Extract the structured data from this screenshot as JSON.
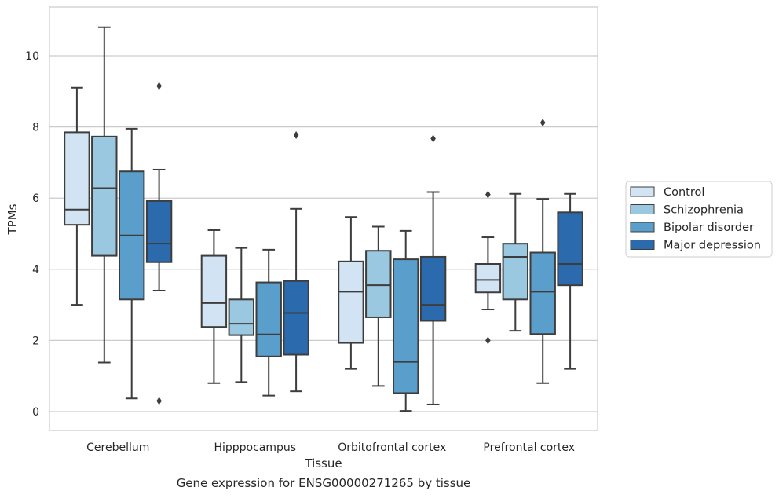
{
  "chart_data": {
    "type": "boxplot",
    "xlabel": "Tissue",
    "ylabel": "TPMs",
    "ylim": [
      -0.5,
      11.3
    ],
    "yticks": [
      0,
      2,
      4,
      6,
      8,
      10
    ],
    "grid": "horizontal",
    "legend_position": "right",
    "categories": [
      "Cerebellum",
      "Hipppocampus",
      "Orbitofrontal cortex",
      "Prefrontal cortex"
    ],
    "series": [
      {
        "name": "Control",
        "color": "#d2e3f3",
        "boxes": [
          {
            "whislo": 3.0,
            "q1": 5.25,
            "med": 5.68,
            "q3": 7.85,
            "whishi": 9.1,
            "fliers": []
          },
          {
            "whislo": 0.8,
            "q1": 2.38,
            "med": 3.05,
            "q3": 4.38,
            "whishi": 5.1,
            "fliers": []
          },
          {
            "whislo": 1.2,
            "q1": 1.93,
            "med": 3.37,
            "q3": 4.22,
            "whishi": 5.47,
            "fliers": []
          },
          {
            "whislo": 2.87,
            "q1": 3.35,
            "med": 3.7,
            "q3": 4.15,
            "whishi": 4.9,
            "fliers": [
              2.0,
              6.1
            ]
          }
        ]
      },
      {
        "name": "Schizophrenia",
        "color": "#9ac8e0",
        "boxes": [
          {
            "whislo": 1.38,
            "q1": 4.38,
            "med": 6.28,
            "q3": 7.73,
            "whishi": 10.8,
            "fliers": []
          },
          {
            "whislo": 0.83,
            "q1": 2.15,
            "med": 2.47,
            "q3": 3.15,
            "whishi": 4.6,
            "fliers": []
          },
          {
            "whislo": 0.72,
            "q1": 2.65,
            "med": 3.55,
            "q3": 4.52,
            "whishi": 5.2,
            "fliers": []
          },
          {
            "whislo": 2.27,
            "q1": 3.15,
            "med": 4.35,
            "q3": 4.72,
            "whishi": 6.12,
            "fliers": []
          }
        ]
      },
      {
        "name": "Bipolar disorder",
        "color": "#5a9ecc",
        "boxes": [
          {
            "whislo": 0.37,
            "q1": 3.15,
            "med": 4.95,
            "q3": 6.75,
            "whishi": 7.95,
            "fliers": []
          },
          {
            "whislo": 0.45,
            "q1": 1.55,
            "med": 2.17,
            "q3": 3.63,
            "whishi": 4.55,
            "fliers": []
          },
          {
            "whislo": 0.02,
            "q1": 0.52,
            "med": 1.4,
            "q3": 4.28,
            "whishi": 5.08,
            "fliers": []
          },
          {
            "whislo": 0.8,
            "q1": 2.18,
            "med": 3.37,
            "q3": 4.47,
            "whishi": 5.98,
            "fliers": [
              8.12
            ]
          }
        ]
      },
      {
        "name": "Major depression",
        "color": "#2b6aac",
        "boxes": [
          {
            "whislo": 3.4,
            "q1": 4.2,
            "med": 4.72,
            "q3": 5.92,
            "whishi": 6.8,
            "fliers": [
              0.3,
              9.15
            ]
          },
          {
            "whislo": 0.57,
            "q1": 1.6,
            "med": 2.77,
            "q3": 3.67,
            "whishi": 5.7,
            "fliers": [
              7.77
            ]
          },
          {
            "whislo": 0.2,
            "q1": 2.55,
            "med": 3.0,
            "q3": 4.35,
            "whishi": 6.17,
            "fliers": [
              7.67
            ]
          },
          {
            "whislo": 1.2,
            "q1": 3.55,
            "med": 4.15,
            "q3": 5.6,
            "whishi": 6.12,
            "fliers": []
          }
        ]
      }
    ]
  },
  "caption": "Gene expression for ENSG00000271265 by tissue"
}
